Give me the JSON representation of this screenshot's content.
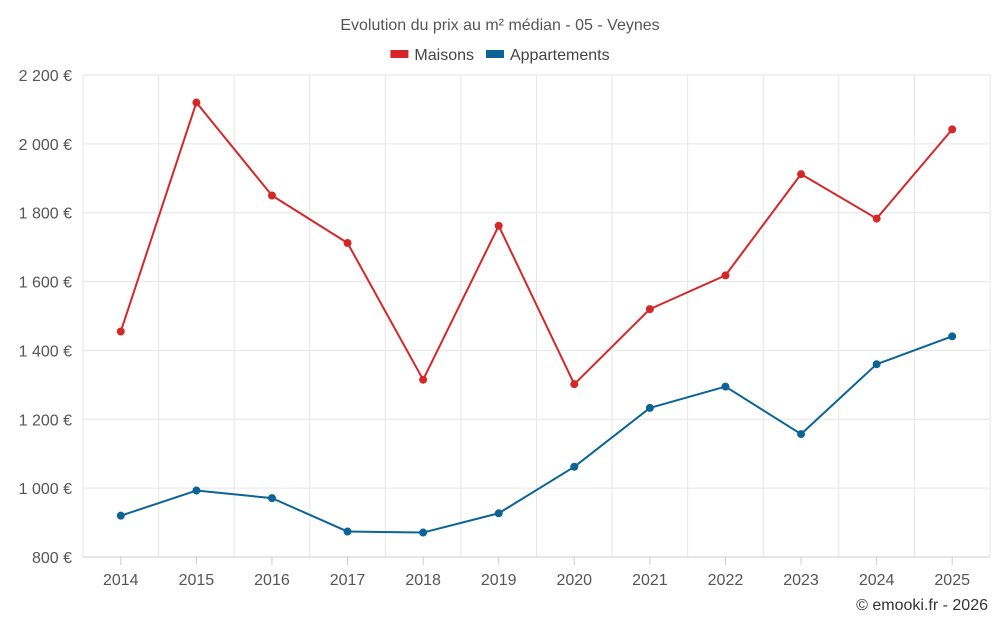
{
  "chart_data": {
    "type": "line",
    "title": "Evolution du prix au m² médian - 05 - Veynes",
    "categories": [
      "2014",
      "2015",
      "2016",
      "2017",
      "2018",
      "2019",
      "2020",
      "2021",
      "2022",
      "2023",
      "2024",
      "2025"
    ],
    "series": [
      {
        "name": "Maisons",
        "color": "#d62728",
        "values": [
          1455,
          2120,
          1850,
          1712,
          1315,
          1762,
          1302,
          1520,
          1618,
          1912,
          1783,
          2042
        ]
      },
      {
        "name": "Appartements",
        "color": "#0b6396",
        "values": [
          920,
          993,
          971,
          874,
          871,
          927,
          1062,
          1233,
          1295,
          1157,
          1360,
          1441
        ]
      }
    ],
    "y_ticks": [
      {
        "value": 800,
        "label": "800 €"
      },
      {
        "value": 1000,
        "label": "1 000 €"
      },
      {
        "value": 1200,
        "label": "1 200 €"
      },
      {
        "value": 1400,
        "label": "1 400 €"
      },
      {
        "value": 1600,
        "label": "1 600 €"
      },
      {
        "value": 1800,
        "label": "1 800 €"
      },
      {
        "value": 2000,
        "label": "2 000 €"
      },
      {
        "value": 2200,
        "label": "2 200 €"
      }
    ],
    "ylim": [
      800,
      2200
    ],
    "xlabel": "",
    "ylabel": "",
    "grid": true,
    "legend_position": "top-center",
    "credit": "© emooki.fr - 2026"
  }
}
